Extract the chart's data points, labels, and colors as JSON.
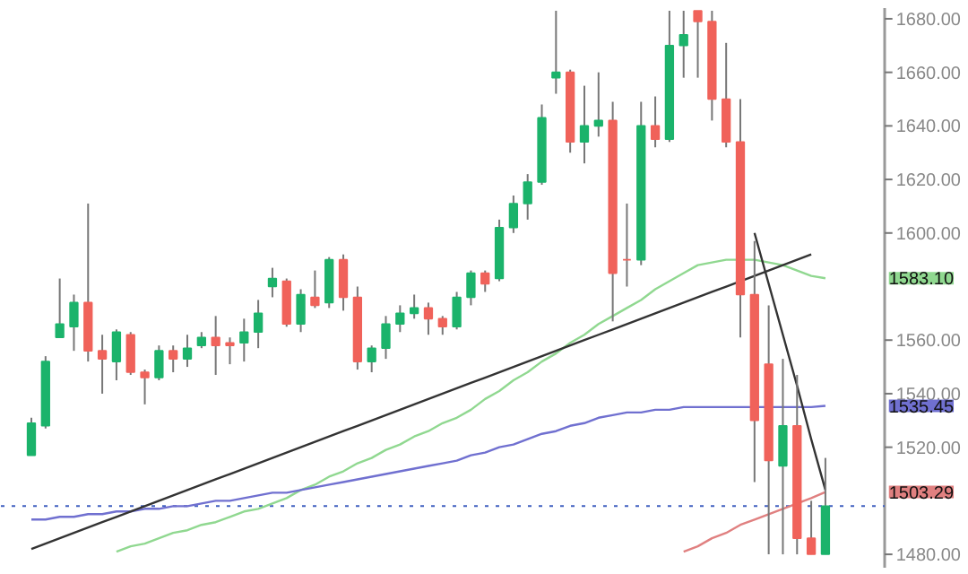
{
  "chart_data": {
    "type": "candlestick",
    "categories": [
      null,
      null,
      null,
      null,
      null,
      null,
      null,
      null,
      null,
      null,
      null,
      null,
      null,
      null,
      null,
      null,
      null,
      null,
      null,
      null,
      null,
      null,
      null,
      null,
      null,
      null,
      null,
      null,
      null,
      null,
      null,
      null,
      null,
      null,
      null,
      null,
      null,
      null,
      null,
      null,
      null,
      null,
      null,
      null,
      null,
      null,
      null,
      null,
      null,
      null,
      null,
      null,
      null,
      null,
      null,
      null,
      null
    ],
    "ohlc": [
      [
        1517,
        1531,
        1517,
        1529
      ],
      [
        1528,
        1554,
        1527,
        1552
      ],
      [
        1561,
        1583,
        1561,
        1566
      ],
      [
        1565,
        1577,
        1556,
        1574
      ],
      [
        1574,
        1611,
        1552,
        1556
      ],
      [
        1556,
        1562,
        1540,
        1553
      ],
      [
        1552,
        1564,
        1545,
        1563
      ],
      [
        1562,
        1563,
        1547,
        1548
      ],
      [
        1548,
        1549,
        1536,
        1546
      ],
      [
        1546,
        1558,
        1545,
        1556
      ],
      [
        1556,
        1558,
        1548,
        1553
      ],
      [
        1553,
        1562,
        1550,
        1557
      ],
      [
        1558,
        1563,
        1557,
        1561
      ],
      [
        1561,
        1569,
        1547,
        1558
      ],
      [
        1559,
        1561,
        1551,
        1558
      ],
      [
        1559,
        1568,
        1552,
        1563
      ],
      [
        1563,
        1575,
        1557,
        1570
      ],
      [
        1580,
        1587,
        1576,
        1583
      ],
      [
        1582,
        1583,
        1565,
        1566
      ],
      [
        1566,
        1579,
        1563,
        1577
      ],
      [
        1576,
        1586,
        1572,
        1573
      ],
      [
        1574,
        1591,
        1572,
        1590
      ],
      [
        1590,
        1592,
        1571,
        1576
      ],
      [
        1576,
        1580,
        1549,
        1552
      ],
      [
        1552,
        1558,
        1548,
        1557
      ],
      [
        1557,
        1569,
        1553,
        1566
      ],
      [
        1566,
        1573,
        1563,
        1570
      ],
      [
        1570,
        1577,
        1568,
        1572
      ],
      [
        1572,
        1574,
        1562,
        1568
      ],
      [
        1568,
        1569,
        1562,
        1565
      ],
      [
        1565,
        1578,
        1564,
        1576
      ],
      [
        1576,
        1586,
        1573,
        1585
      ],
      [
        1585,
        1586,
        1578,
        1581
      ],
      [
        1583,
        1605,
        1582,
        1602
      ],
      [
        1602,
        1614,
        1600,
        1611
      ],
      [
        1611,
        1622,
        1605,
        1619
      ],
      [
        1619,
        1648,
        1618,
        1643
      ],
      [
        1658,
        1683,
        1652,
        1660
      ],
      [
        1660,
        1661,
        1630,
        1634
      ],
      [
        1634,
        1655,
        1626,
        1640
      ],
      [
        1640,
        1660,
        1636,
        1642
      ],
      [
        1642,
        1649,
        1567,
        1585
      ],
      [
        1590,
        1611,
        1580,
        1590
      ],
      [
        1590,
        1649,
        1588,
        1640
      ],
      [
        1640,
        1651,
        1632,
        1635
      ],
      [
        1635,
        1683,
        1634,
        1670
      ],
      [
        1670,
        1683,
        1658,
        1674
      ],
      [
        1683,
        1683,
        1658,
        1679
      ],
      [
        1679,
        1683,
        1642,
        1650
      ],
      [
        1650,
        1671,
        1632,
        1634
      ],
      [
        1634,
        1650,
        1561,
        1577
      ],
      [
        1577,
        1597,
        1507,
        1530
      ],
      [
        1551,
        1573,
        1480,
        1515
      ],
      [
        1513,
        1553,
        1480,
        1528
      ],
      [
        1528,
        1547,
        1480,
        1486
      ],
      [
        1486,
        1500,
        1480,
        1480
      ],
      [
        1480,
        1516,
        1480,
        1498
      ]
    ],
    "colors": [
      "#1bb36b",
      "#1bb36b",
      "#1bb36b",
      "#1bb36b",
      "#f0625a",
      "#f0625a",
      "#1bb36b",
      "#f0625a",
      "#f0625a",
      "#1bb36b",
      "#f0625a",
      "#1bb36b",
      "#1bb36b",
      "#f0625a",
      "#f0625a",
      "#1bb36b",
      "#1bb36b",
      "#1bb36b",
      "#f0625a",
      "#1bb36b",
      "#f0625a",
      "#1bb36b",
      "#f0625a",
      "#f0625a",
      "#1bb36b",
      "#1bb36b",
      "#1bb36b",
      "#1bb36b",
      "#f0625a",
      "#f0625a",
      "#1bb36b",
      "#1bb36b",
      "#f0625a",
      "#1bb36b",
      "#1bb36b",
      "#1bb36b",
      "#1bb36b",
      "#1bb36b",
      "#f0625a",
      "#1bb36b",
      "#1bb36b",
      "#f0625a",
      "#f0625a",
      "#1bb36b",
      "#f0625a",
      "#1bb36b",
      "#1bb36b",
      "#f0625a",
      "#f0625a",
      "#f0625a",
      "#f0625a",
      "#f0625a",
      "#f0625a",
      "#1bb36b",
      "#f0625a",
      "#f0625a",
      "#1bb36b"
    ],
    "series": [
      {
        "type": "line",
        "color": "#90d890",
        "values": [
          null,
          null,
          null,
          null,
          null,
          null,
          1481,
          1483,
          1484,
          1486,
          1488,
          1489,
          1491,
          1492,
          1494,
          1496,
          1497,
          1499,
          1501,
          1504,
          1506,
          1509,
          1511,
          1514,
          1516,
          1519,
          1521,
          1524,
          1526,
          1529,
          1531,
          1534,
          1538,
          1541,
          1545,
          1548,
          1552,
          1555,
          1559,
          1562,
          1566,
          1569,
          1572,
          1575,
          1579,
          1582,
          1585,
          1588,
          1589,
          1590,
          1590,
          1590,
          1589,
          1588,
          1586,
          1584,
          1583.1
        ]
      },
      {
        "type": "line",
        "color": "#7070d0",
        "values": [
          1493,
          1493,
          1494,
          1494,
          1495,
          1495,
          1496,
          1496,
          1497,
          1497,
          1498,
          1498,
          1499,
          1500,
          1500,
          1501,
          1502,
          1503,
          1503,
          1504,
          1505,
          1506,
          1507,
          1508,
          1509,
          1510,
          1511,
          1512,
          1513,
          1514,
          1515,
          1517,
          1518,
          1520,
          1521,
          1523,
          1525,
          1526,
          1528,
          1529,
          1531,
          1532,
          1533,
          1533,
          1534,
          1534,
          1535,
          1535,
          1535,
          1535,
          1535,
          1535,
          1535,
          1535,
          1535,
          1535,
          1535.45
        ]
      },
      {
        "type": "line",
        "color": "#e08080",
        "values": [
          null,
          null,
          null,
          null,
          null,
          null,
          null,
          null,
          null,
          null,
          null,
          null,
          null,
          null,
          null,
          null,
          null,
          null,
          null,
          null,
          null,
          null,
          null,
          null,
          null,
          null,
          null,
          null,
          null,
          null,
          null,
          null,
          null,
          null,
          null,
          null,
          null,
          null,
          null,
          null,
          null,
          null,
          null,
          null,
          null,
          null,
          1481,
          1483,
          1486,
          1488,
          1491,
          1493,
          1495,
          1497,
          1499,
          1501,
          1503.29
        ]
      },
      {
        "type": "line",
        "color": "#333333",
        "values": [
          1482,
          1484,
          1486,
          1488,
          1490,
          1492,
          1494,
          1496,
          1498,
          1500,
          1502,
          1504,
          1506,
          1508,
          1510,
          1512,
          1514,
          1516,
          1518,
          1520,
          1522,
          1524,
          1526,
          1528,
          1530,
          1532,
          1534,
          1536,
          1538,
          1540,
          1542,
          1544,
          1546,
          1548,
          1550,
          1552,
          1554,
          1556,
          1558,
          1560,
          1562,
          1564,
          1566,
          1568,
          1570,
          1572,
          1574,
          1576,
          1578,
          1580,
          1582,
          1584,
          1586,
          1588,
          1590,
          1592,
          null
        ]
      },
      {
        "type": "line",
        "color": "#333333",
        "values": [
          null,
          null,
          null,
          null,
          null,
          null,
          null,
          null,
          null,
          null,
          null,
          null,
          null,
          null,
          null,
          null,
          null,
          null,
          null,
          null,
          null,
          null,
          null,
          null,
          null,
          null,
          null,
          null,
          null,
          null,
          null,
          null,
          null,
          null,
          null,
          null,
          null,
          null,
          null,
          null,
          null,
          null,
          null,
          null,
          null,
          null,
          null,
          null,
          null,
          null,
          null,
          1600,
          1581,
          1562,
          1543,
          1523,
          1504
        ]
      }
    ],
    "ref_lines": [
      {
        "axis": "y",
        "value": 1498,
        "color": "#4060c0",
        "line_style": "dotted"
      }
    ],
    "annotations": [
      "1583.10",
      "1535.45",
      "1503.29"
    ],
    "ylim": [
      1475,
      1684
    ],
    "yticks": [
      {
        "value": 1480,
        "label": "1480.00"
      },
      {
        "value": 1520,
        "label": "1520.00"
      },
      {
        "value": 1540,
        "label": "1540.00"
      },
      {
        "value": 1560,
        "label": "1560.00"
      },
      {
        "value": 1600,
        "label": "1600.00"
      },
      {
        "value": 1620,
        "label": "1620.00"
      },
      {
        "value": 1640,
        "label": "1640.00"
      },
      {
        "value": 1660,
        "label": "1660.00"
      },
      {
        "value": 1680,
        "label": "1680.00"
      }
    ],
    "tick_labels": "y",
    "grid": false
  }
}
